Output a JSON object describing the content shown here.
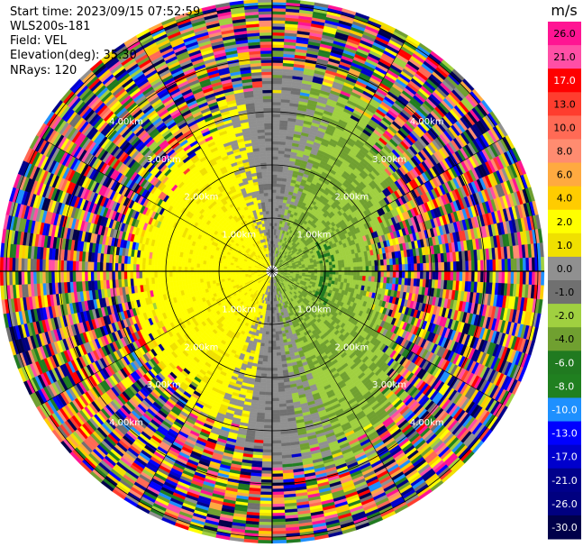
{
  "header": {
    "start_time": "Start time: 2023/09/15 07:52:59",
    "instrument": "WLS200s-181",
    "field": "Field: VEL",
    "elevation": "Elevation(deg): 35.30",
    "nrays": "NRays: 120"
  },
  "chart_data": {
    "type": "heatmap",
    "subtype": "ppi",
    "field": "VEL",
    "n_rays": 120,
    "range_rings_labels": [
      "1.00km",
      "2.00km",
      "3.00km",
      "4.00km"
    ],
    "colorbar": {
      "unit": "m/s",
      "tick_labels": [
        "26.0",
        "21.0",
        "17.0",
        "13.0",
        "10.0",
        "8.0",
        "6.0",
        "4.0",
        "2.0",
        "1.0",
        "0.0",
        "-1.0",
        "-2.0",
        "-4.0",
        "-6.0",
        "-8.0",
        "-10.0",
        "-13.0",
        "-17.0",
        "-21.0",
        "-26.0",
        "-30.0"
      ],
      "colors": [
        "#ff1493",
        "#ff4fa6",
        "#ff0000",
        "#ff3d2e",
        "#ff6a55",
        "#ff8c70",
        "#ffaa40",
        "#ffcc00",
        "#ffff00",
        "#f0e000",
        "#909090",
        "#707070",
        "#a0d040",
        "#70a030",
        "#207a20",
        "#208020",
        "#1e90ff",
        "#0000ff",
        "#0000cd",
        "#00008b",
        "#000080",
        "#00004a"
      ]
    }
  }
}
